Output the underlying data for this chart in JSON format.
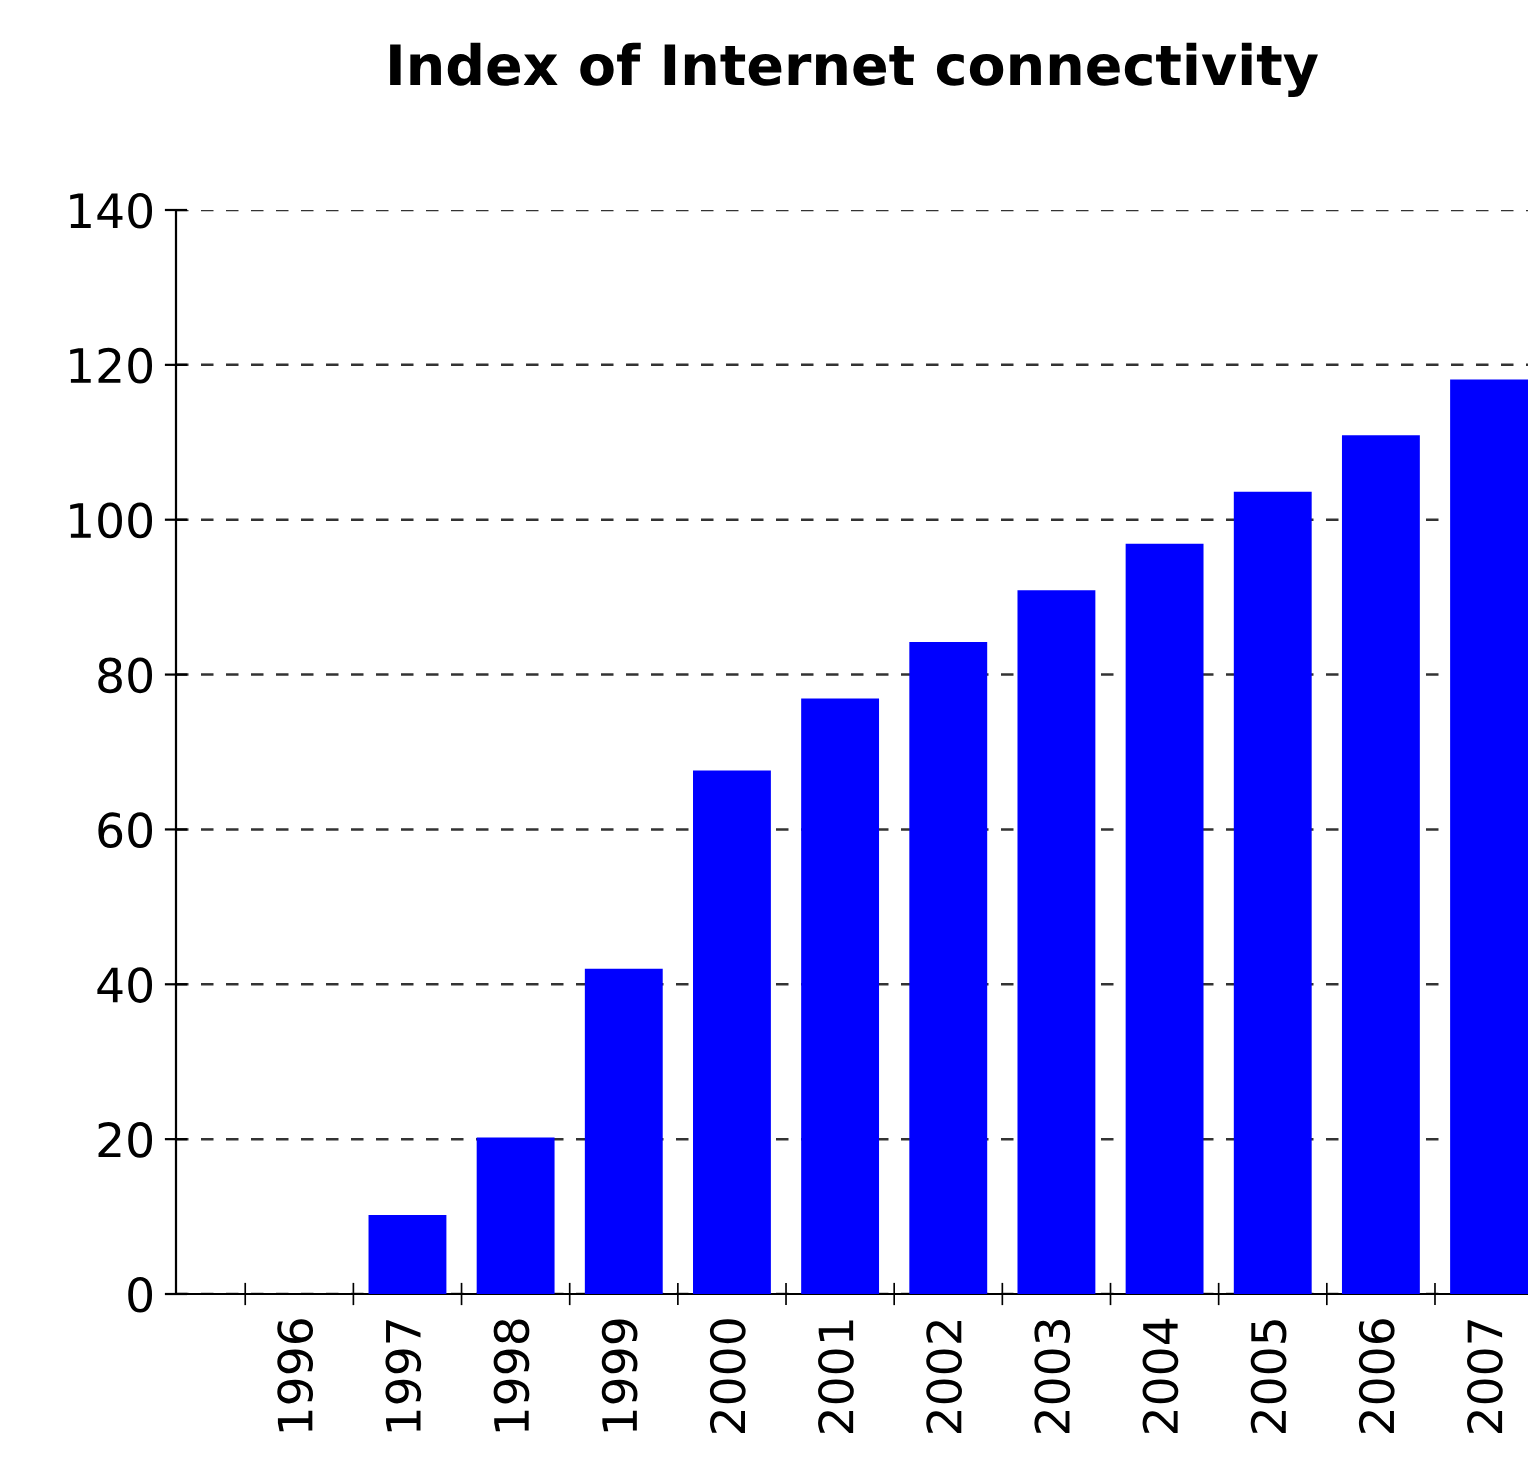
{
  "chart_data": {
    "type": "bar",
    "title": "Index of Internet connectivity",
    "categories": [
      "1996",
      "1997",
      "1998",
      "1999",
      "2000",
      "2001",
      "2002",
      "2003",
      "2004",
      "2005",
      "2006",
      "2007"
    ],
    "values": [
      0,
      10.2,
      20.2,
      42,
      67.6,
      76.9,
      84.2,
      90.9,
      96.9,
      103.6,
      110.9,
      118.1
    ],
    "color": "#0000ff",
    "ylim": [
      0,
      140
    ],
    "yticks": [
      0,
      20,
      40,
      60,
      80,
      100,
      120,
      140
    ],
    "grid": "y"
  }
}
